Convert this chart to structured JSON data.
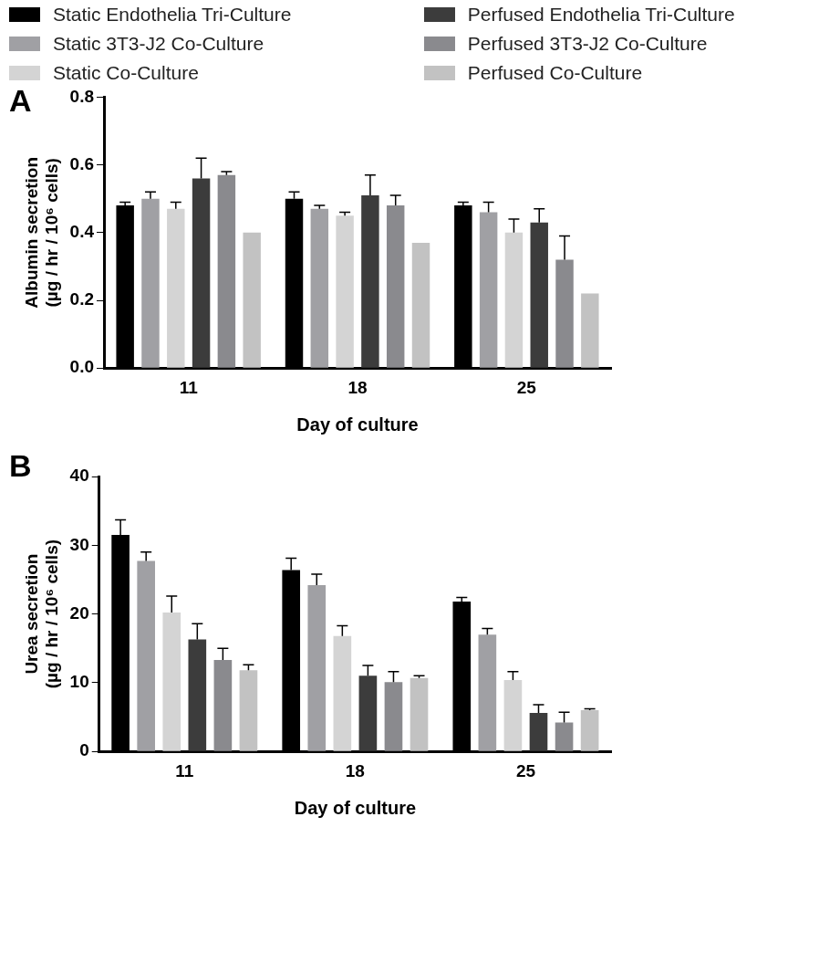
{
  "chart_data": [
    {
      "type": "bar",
      "annotations": [
        "A"
      ],
      "xlabel": "Day of culture",
      "ylabel": "Albumin secretion (µg / hr / 10⁶ cells)",
      "categories": [
        "11",
        "18",
        "25"
      ],
      "ylim": [
        0,
        0.8
      ],
      "yticks": [
        {
          "value": 0,
          "label": "0.0"
        },
        {
          "value": 0.2,
          "label": "0.2"
        },
        {
          "value": 0.4,
          "label": "0.4"
        },
        {
          "value": 0.6,
          "label": "0.6"
        },
        {
          "value": 0.8,
          "label": "0.8"
        }
      ],
      "grid": false,
      "legend": "top",
      "series": [
        {
          "name": "Static Endothelia Tri-Culture",
          "color": "#000000",
          "values": [
            0.48,
            0.5,
            0.48
          ],
          "errors": [
            [
              0.48,
              0.49
            ],
            [
              0.5,
              0.52
            ],
            [
              0.48,
              0.49
            ]
          ]
        },
        {
          "name": "Static 3T3-J2 Co-Culture",
          "color": "#a0a0a4",
          "values": [
            0.5,
            0.47,
            0.46
          ],
          "errors": [
            [
              0.5,
              0.52
            ],
            [
              0.47,
              0.48
            ],
            [
              0.46,
              0.49
            ]
          ]
        },
        {
          "name": "Static Co-Culture",
          "color": "#d4d4d4",
          "values": [
            0.47,
            0.45,
            0.4
          ],
          "errors": [
            [
              0.47,
              0.49
            ],
            [
              0.45,
              0.46
            ],
            [
              0.4,
              0.44
            ]
          ]
        },
        {
          "name": "Perfused Endothelia Tri-Culture",
          "color": "#3c3c3c",
          "values": [
            0.56,
            0.51,
            0.43
          ],
          "errors": [
            [
              0.56,
              0.62
            ],
            [
              0.51,
              0.57
            ],
            [
              0.43,
              0.47
            ]
          ]
        },
        {
          "name": "Perfused 3T3-J2 Co-Culture",
          "color": "#8a8a8e",
          "values": [
            0.57,
            0.48,
            0.32
          ],
          "errors": [
            [
              0.57,
              0.58
            ],
            [
              0.48,
              0.51
            ],
            [
              0.32,
              0.39
            ]
          ]
        },
        {
          "name": "Perfused Co-Culture",
          "color": "#c2c2c2",
          "values": [
            0.4,
            0.37,
            0.22
          ],
          "errors": [
            null,
            null,
            null
          ]
        }
      ]
    },
    {
      "type": "bar",
      "annotations": [
        "B"
      ],
      "xlabel": "Day of culture",
      "ylabel": "Urea secretion (µg / hr / 10⁶ cells)",
      "categories": [
        "11",
        "18",
        "25"
      ],
      "ylim": [
        0,
        40
      ],
      "yticks": [
        0,
        10,
        20,
        30,
        40
      ],
      "grid": false,
      "series": [
        {
          "color": "#000000",
          "values": [
            31.5,
            26.4,
            21.8
          ],
          "errors": [
            [
              31.5,
              33.7
            ],
            [
              26.4,
              28.1
            ],
            [
              21.8,
              22.4
            ]
          ]
        },
        {
          "color": "#a0a0a4",
          "values": [
            27.7,
            24.2,
            17.0
          ],
          "errors": [
            [
              27.7,
              29.0
            ],
            [
              24.2,
              25.8
            ],
            [
              17.0,
              17.9
            ]
          ]
        },
        {
          "color": "#d4d4d4",
          "values": [
            20.2,
            16.8,
            10.4
          ],
          "errors": [
            [
              20.2,
              22.6
            ],
            [
              16.8,
              18.3
            ],
            [
              10.4,
              11.6
            ]
          ]
        },
        {
          "color": "#3c3c3c",
          "values": [
            16.3,
            11.0,
            5.6
          ],
          "errors": [
            [
              16.3,
              18.6
            ],
            [
              11.0,
              12.5
            ],
            [
              5.6,
              6.8
            ]
          ]
        },
        {
          "color": "#8a8a8e",
          "values": [
            13.3,
            10.1,
            4.2
          ],
          "errors": [
            [
              13.3,
              15.0
            ],
            [
              10.1,
              11.6
            ],
            [
              4.2,
              5.7
            ]
          ]
        },
        {
          "color": "#c2c2c2",
          "values": [
            11.8,
            10.7,
            6.0
          ],
          "errors": [
            [
              11.8,
              12.6
            ],
            [
              10.7,
              11.0
            ],
            [
              6.0,
              6.2
            ]
          ]
        }
      ]
    }
  ]
}
